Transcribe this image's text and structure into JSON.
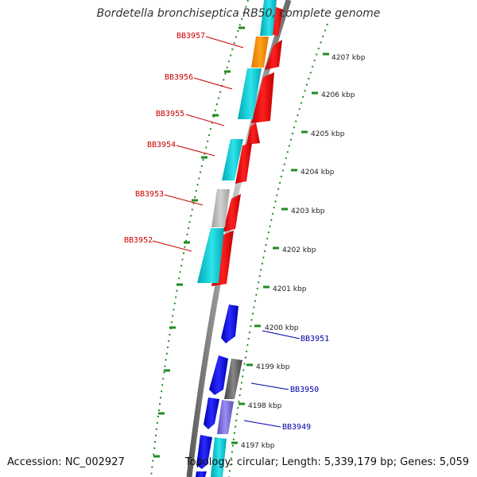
{
  "title": "Bordetella bronchiseptica RB50, complete genome",
  "footer": {
    "accession": "Accession: NC_002927",
    "topology": "Topology: circular; Length: 5,339,179 bp; Genes: 5,059"
  },
  "colors": {
    "forward_label": "#cc0000",
    "reverse_label": "#0000aa",
    "backbone": "#888888",
    "dotted_ring": "#228b22"
  },
  "scale": {
    "ticks": [
      "4207 kbp",
      "4206 kbp",
      "4205 kbp",
      "4204 kbp",
      "4203 kbp",
      "4202 kbp",
      "4201 kbp",
      "4200 kbp",
      "4199 kbp",
      "4198 kbp",
      "4197 kbp"
    ]
  },
  "gene_labels": {
    "left": [
      "BB3957",
      "BB3956",
      "BB3955",
      "BB3954",
      "BB3953",
      "BB3952"
    ],
    "right": [
      "BB3951",
      "BB3950",
      "BB3949"
    ]
  },
  "tracks": {
    "forward": [
      "red",
      "red",
      "red",
      "red",
      "red",
      "red",
      "red"
    ],
    "outer_forward": [
      "cyan",
      "orange",
      "cyan",
      "cyan",
      "gray",
      "cyan"
    ],
    "reverse": [
      "blue",
      "blue",
      "blue",
      "blue"
    ],
    "outer_reverse": [
      "dark-gray",
      "slate-blue",
      "cyan"
    ]
  }
}
